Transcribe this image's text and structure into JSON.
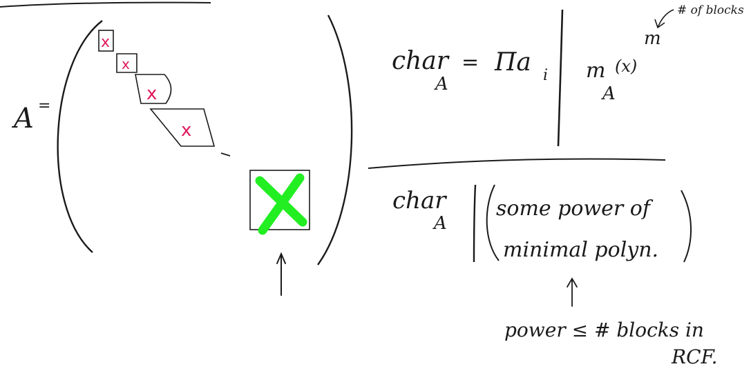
{
  "colors": {
    "ink": "#1a1a1a",
    "marker_pink": "#e0185c",
    "marker_green": "#22ee22"
  },
  "left": {
    "a_label": "A",
    "a_equals": "=",
    "block_marks": [
      "x",
      "x",
      "x",
      "x"
    ],
    "big_block_mark_icon": "large-green-x",
    "arrow_icon": "up-arrow"
  },
  "right": {
    "top": {
      "char": "char",
      "char_sub": "A",
      "equals": "=",
      "product": "Πa",
      "product_sub": "i",
      "m_label": "m",
      "m_sub": "A",
      "m_arg": "(x)",
      "exponent": "m",
      "annotation": "# of blocks"
    },
    "bottom": {
      "char": "char",
      "char_sub": "A",
      "line1": "some power of",
      "line2": "minimal polyn.",
      "note_line1": "power ≤ # blocks in",
      "note_line2": "RCF."
    }
  }
}
